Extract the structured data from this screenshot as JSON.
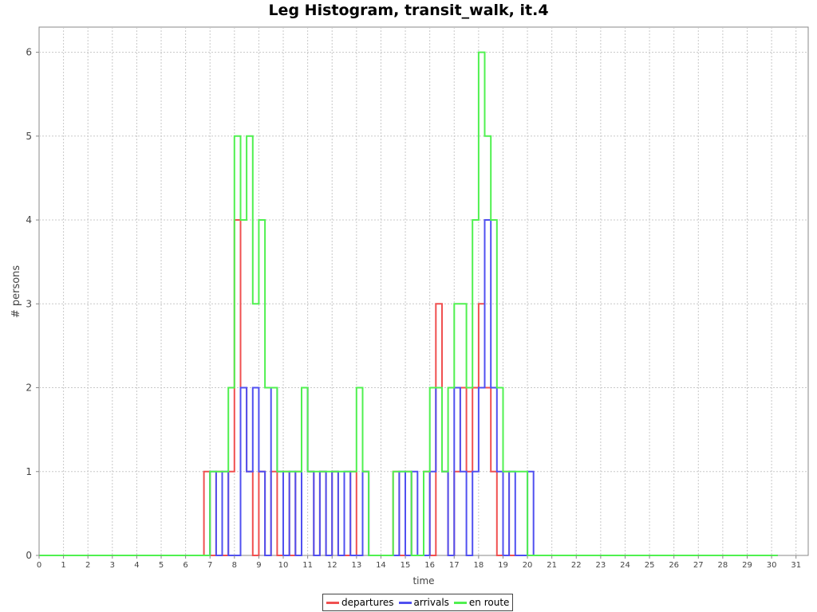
{
  "chart_data": {
    "type": "line",
    "title": "Leg Histogram, transit_walk, it.4",
    "xlabel": "time",
    "ylabel": "# persons",
    "xlim": [
      0,
      31.5
    ],
    "ylim": [
      0,
      6.3
    ],
    "x_ticks": [
      "0",
      "1",
      "2",
      "3",
      "4",
      "5",
      "6",
      "7",
      "8",
      "9",
      "10",
      "11",
      "12",
      "13",
      "14",
      "15",
      "16",
      "17",
      "18",
      "19",
      "20",
      "21",
      "22",
      "23",
      "24",
      "25",
      "26",
      "27",
      "28",
      "29",
      "30",
      "31"
    ],
    "y_ticks": [
      "0",
      "1",
      "2",
      "3",
      "4",
      "5",
      "6"
    ],
    "grid": true,
    "legend_position": "bottom",
    "bin_width_hours": 0.25,
    "x_start": 0,
    "x_end": 30.25,
    "series": [
      {
        "name": "departures",
        "color": "#f05050",
        "bins": [
          [
            6.75,
            1
          ],
          [
            7.0,
            0
          ],
          [
            7.25,
            1
          ],
          [
            7.5,
            0
          ],
          [
            7.75,
            1
          ],
          [
            8.0,
            4
          ],
          [
            8.25,
            2
          ],
          [
            8.5,
            1
          ],
          [
            8.75,
            0
          ],
          [
            9.0,
            1
          ],
          [
            9.25,
            0
          ],
          [
            9.5,
            1
          ],
          [
            9.75,
            0
          ],
          [
            10.0,
            1
          ],
          [
            10.25,
            0
          ],
          [
            10.5,
            1
          ],
          [
            10.75,
            2
          ],
          [
            11.0,
            1
          ],
          [
            11.25,
            0
          ],
          [
            11.5,
            1
          ],
          [
            11.75,
            0
          ],
          [
            12.0,
            1
          ],
          [
            12.25,
            0
          ],
          [
            12.75,
            1
          ],
          [
            13.0,
            0
          ],
          [
            13.25,
            1
          ],
          [
            13.5,
            0
          ],
          [
            14.5,
            1
          ],
          [
            14.75,
            0
          ],
          [
            15.0,
            1
          ],
          [
            15.25,
            0
          ],
          [
            15.75,
            1
          ],
          [
            16.0,
            0
          ],
          [
            16.25,
            3
          ],
          [
            16.5,
            1
          ],
          [
            16.75,
            0
          ],
          [
            17.0,
            1
          ],
          [
            17.25,
            2
          ],
          [
            17.5,
            1
          ],
          [
            17.75,
            2
          ],
          [
            18.0,
            3
          ],
          [
            18.25,
            2
          ],
          [
            18.5,
            1
          ],
          [
            18.75,
            0
          ],
          [
            19.0,
            1
          ],
          [
            19.25,
            0
          ],
          [
            19.5,
            0
          ]
        ]
      },
      {
        "name": "arrivals",
        "color": "#5050f0",
        "bins": [
          [
            7.0,
            1
          ],
          [
            7.25,
            0
          ],
          [
            7.5,
            1
          ],
          [
            7.75,
            0
          ],
          [
            8.25,
            2
          ],
          [
            8.5,
            1
          ],
          [
            8.75,
            2
          ],
          [
            9.0,
            1
          ],
          [
            9.25,
            0
          ],
          [
            9.5,
            2
          ],
          [
            9.75,
            1
          ],
          [
            10.0,
            0
          ],
          [
            10.25,
            1
          ],
          [
            10.5,
            0
          ],
          [
            10.75,
            2
          ],
          [
            11.0,
            1
          ],
          [
            11.25,
            0
          ],
          [
            11.5,
            1
          ],
          [
            11.75,
            0
          ],
          [
            12.0,
            1
          ],
          [
            12.25,
            0
          ],
          [
            12.5,
            1
          ],
          [
            12.75,
            0
          ],
          [
            13.0,
            0
          ],
          [
            13.25,
            1
          ],
          [
            13.5,
            0
          ],
          [
            14.75,
            1
          ],
          [
            15.0,
            0
          ],
          [
            15.25,
            1
          ],
          [
            15.5,
            0
          ],
          [
            16.0,
            1
          ],
          [
            16.25,
            2
          ],
          [
            16.5,
            1
          ],
          [
            16.75,
            0
          ],
          [
            17.0,
            2
          ],
          [
            17.25,
            1
          ],
          [
            17.5,
            0
          ],
          [
            17.75,
            1
          ],
          [
            18.0,
            2
          ],
          [
            18.25,
            4
          ],
          [
            18.5,
            2
          ],
          [
            18.75,
            1
          ],
          [
            19.0,
            0
          ],
          [
            19.25,
            1
          ],
          [
            19.5,
            0
          ],
          [
            19.75,
            0
          ],
          [
            20.0,
            1
          ],
          [
            20.25,
            0
          ]
        ]
      },
      {
        "name": "en route",
        "color": "#50f050",
        "bins": [
          [
            7.0,
            1
          ],
          [
            7.75,
            2
          ],
          [
            8.0,
            5
          ],
          [
            8.25,
            4
          ],
          [
            8.5,
            5
          ],
          [
            8.75,
            3
          ],
          [
            9.0,
            4
          ],
          [
            9.25,
            2
          ],
          [
            9.5,
            2
          ],
          [
            9.75,
            1
          ],
          [
            10.0,
            1
          ],
          [
            10.75,
            2
          ],
          [
            11.0,
            1
          ],
          [
            13.0,
            2
          ],
          [
            13.25,
            1
          ],
          [
            13.5,
            0
          ],
          [
            14.5,
            1
          ],
          [
            15.25,
            0
          ],
          [
            15.75,
            1
          ],
          [
            16.0,
            2
          ],
          [
            16.5,
            1
          ],
          [
            16.75,
            2
          ],
          [
            17.0,
            3
          ],
          [
            17.5,
            2
          ],
          [
            17.75,
            4
          ],
          [
            18.0,
            6
          ],
          [
            18.25,
            5
          ],
          [
            18.5,
            4
          ],
          [
            18.75,
            2
          ],
          [
            19.0,
            1
          ],
          [
            19.5,
            1
          ],
          [
            20.0,
            0
          ]
        ]
      }
    ]
  }
}
